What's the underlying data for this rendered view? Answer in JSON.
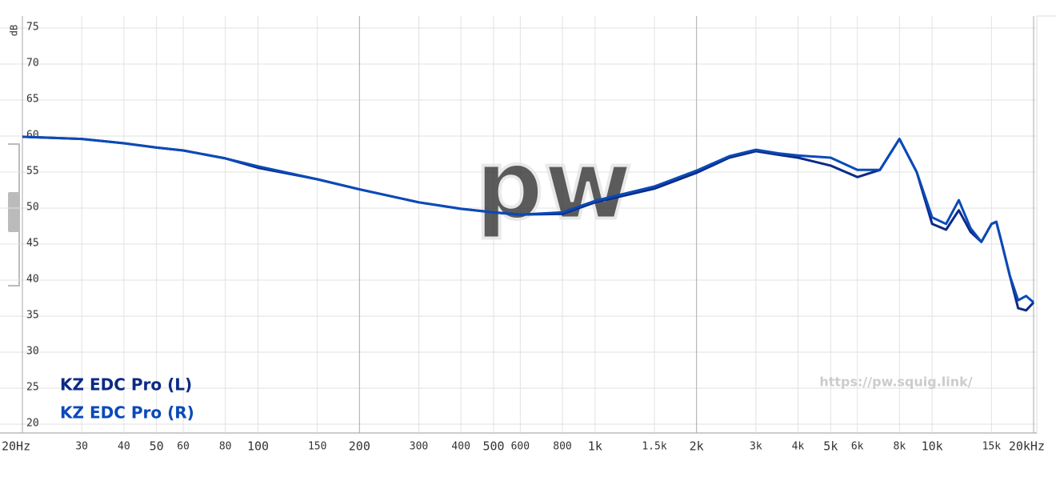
{
  "chart_data": {
    "type": "line",
    "xscale": "log",
    "grid": true,
    "y_label": "dB",
    "watermark": "pw",
    "url": "https://pw.squig.link/",
    "x": [
      20,
      30,
      40,
      50,
      60,
      80,
      100,
      150,
      200,
      300,
      400,
      500,
      600,
      800,
      1000,
      1500,
      2000,
      2500,
      3000,
      3500,
      4000,
      5000,
      6000,
      7000,
      8000,
      9000,
      10000,
      11000,
      12000,
      13000,
      14000,
      15000,
      15500,
      16000,
      17000,
      18000,
      19000,
      20000
    ],
    "series": [
      {
        "name": "KZ EDC Pro (L)",
        "color": "#0b2a85",
        "values": [
          59.9,
          59.6,
          59.0,
          58.4,
          58.0,
          56.9,
          55.6,
          54.0,
          52.6,
          50.8,
          49.9,
          49.4,
          49.1,
          49.2,
          50.8,
          52.7,
          54.9,
          57.0,
          57.9,
          57.4,
          57.0,
          55.9,
          54.3,
          55.3,
          59.6,
          55.0,
          47.8,
          47.0,
          49.7,
          46.7,
          45.3,
          47.8,
          48.1,
          45.6,
          40.6,
          36.1,
          35.8,
          36.9
        ]
      },
      {
        "name": "KZ EDC Pro (R)",
        "color": "#0a4ab8",
        "values": [
          59.9,
          59.6,
          59.0,
          58.4,
          58.0,
          56.9,
          55.8,
          54.0,
          52.6,
          50.8,
          49.9,
          49.4,
          49.1,
          49.4,
          51.0,
          53.0,
          55.2,
          57.2,
          58.1,
          57.6,
          57.3,
          57.0,
          55.3,
          55.3,
          59.6,
          55.0,
          48.7,
          47.8,
          51.1,
          47.2,
          45.3,
          47.8,
          48.1,
          45.6,
          40.6,
          37.2,
          37.8,
          36.9
        ]
      }
    ],
    "xlim": [
      20,
      20000
    ],
    "ylim": [
      20,
      75
    ],
    "yticks": [
      20,
      25,
      30,
      35,
      40,
      45,
      50,
      55,
      60,
      65,
      70,
      75
    ],
    "xticks": [
      {
        "value": 20,
        "label": "20Hz"
      },
      30,
      40,
      50,
      60,
      80,
      100,
      150,
      200,
      300,
      400,
      500,
      600,
      800,
      {
        "value": 1000,
        "label": "1k"
      },
      {
        "value": 1500,
        "label": "1.5k"
      },
      {
        "value": 2000,
        "label": "2k"
      },
      {
        "value": 3000,
        "label": "3k"
      },
      {
        "value": 4000,
        "label": "4k"
      },
      {
        "value": 5000,
        "label": "5k"
      },
      {
        "value": 6000,
        "label": "6k"
      },
      {
        "value": 8000,
        "label": "8k"
      },
      {
        "value": 10000,
        "label": "10k"
      },
      {
        "value": 15000,
        "label": "15k"
      },
      {
        "value": 20000,
        "label": "20kHz"
      }
    ]
  }
}
